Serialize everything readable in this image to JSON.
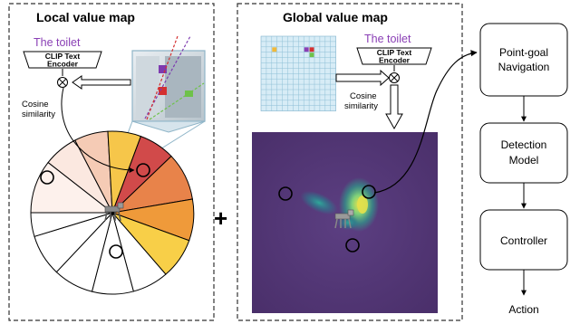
{
  "panels": {
    "local_title": "Local value map",
    "global_title": "Global value map"
  },
  "local": {
    "target_text": "The toilet",
    "encoder_line1": "CLIP Text",
    "encoder_line2": "Encoder",
    "similarity_line1": "Cosine",
    "similarity_line2": "similarity"
  },
  "global": {
    "target_text": "The toilet",
    "encoder_line1": "CLIP Text",
    "encoder_line2": "Encoder",
    "similarity_line1": "Cosine",
    "similarity_line2": "similarity"
  },
  "operator": "+",
  "pipeline": {
    "point_goal_line1": "Point-goal",
    "point_goal_line2": "Navigation",
    "detection_line1": "Detection",
    "detection_line2": "Model",
    "controller": "Controller",
    "action": "Action"
  },
  "colors": {
    "purple_text": "#8a3fb5",
    "heat_background": "#5a3f7e",
    "heat_peak": "#c8dc4a"
  }
}
